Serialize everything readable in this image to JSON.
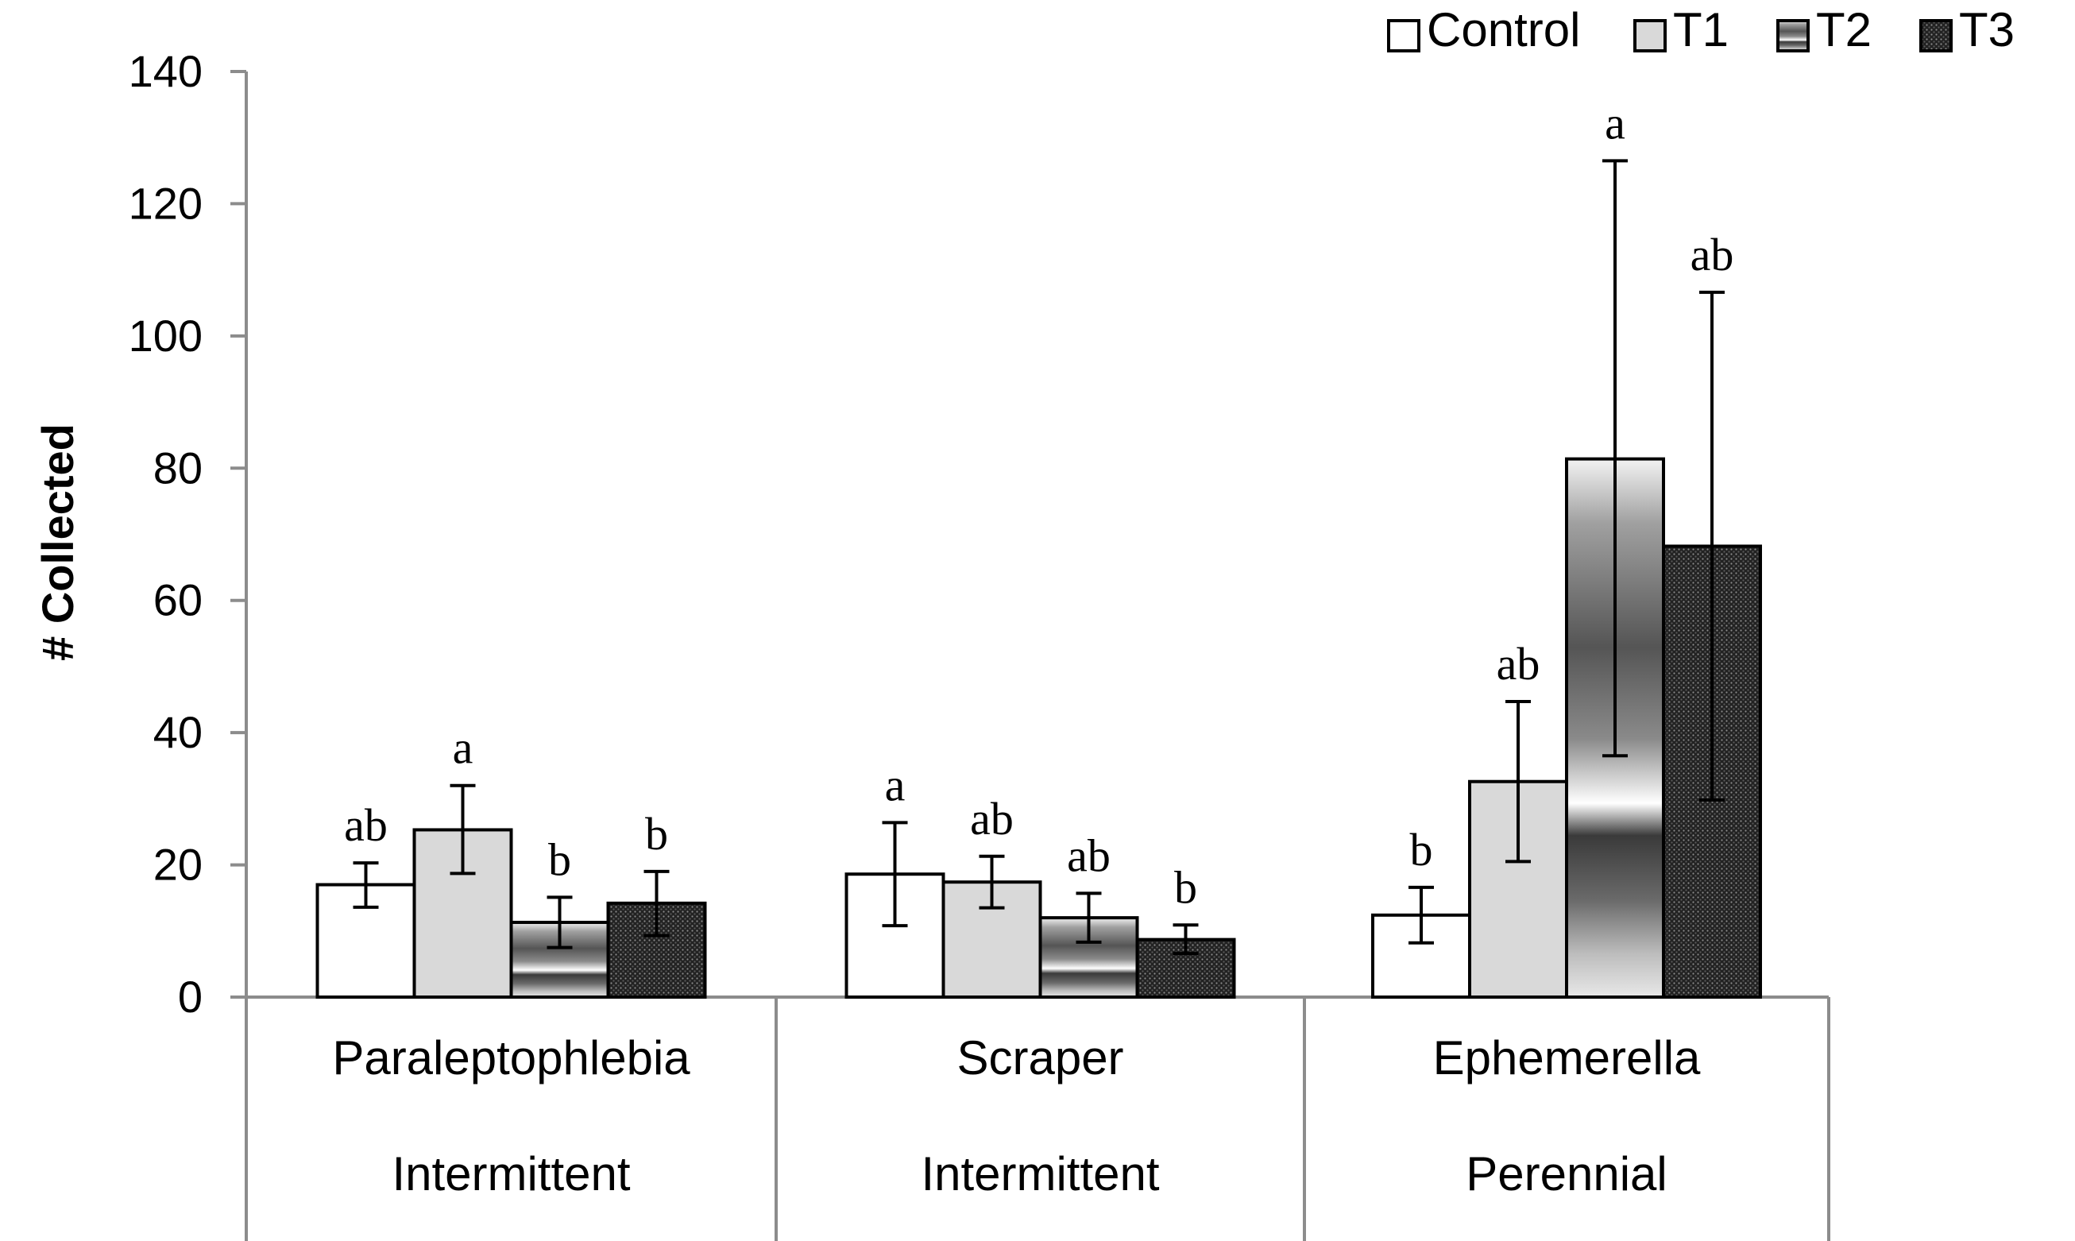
{
  "chart_data": {
    "type": "bar",
    "title": "",
    "xlabel": "",
    "ylabel": "# Collected",
    "ylim": [
      0,
      140
    ],
    "yticks": [
      "0",
      "20",
      "40",
      "60",
      "80",
      "100",
      "120",
      "140"
    ],
    "ytick_values": [
      0,
      20,
      40,
      60,
      80,
      100,
      120,
      140
    ],
    "grid": false,
    "legend_position": "top-right",
    "categories": [
      {
        "name": "Paraleptophlebia",
        "group": "Intermittent"
      },
      {
        "name": "Scraper",
        "group": "Intermittent"
      },
      {
        "name": "Ephemerella",
        "group": "Perennial"
      }
    ],
    "series": [
      {
        "name": "Control",
        "fill": "#ffffff",
        "values": [
          17,
          18.6,
          12.4
        ],
        "err_low": [
          13.6,
          10.8,
          8.2
        ],
        "err_high": [
          20.3,
          26.4,
          16.6
        ],
        "labels": [
          "ab",
          "a",
          "b"
        ]
      },
      {
        "name": "T1",
        "fill": "#d9d9d9",
        "values": [
          25.3,
          17.4,
          32.6
        ],
        "err_low": [
          18.7,
          13.5,
          20.5
        ],
        "err_high": [
          32,
          21.3,
          44.7
        ],
        "labels": [
          "a",
          "ab",
          "ab"
        ]
      },
      {
        "name": "T2",
        "fill": "gradient-metal",
        "values": [
          11.3,
          12,
          81.4
        ],
        "err_low": [
          7.5,
          8.3,
          36.5
        ],
        "err_high": [
          15.1,
          15.7,
          126.5
        ],
        "labels": [
          "b",
          "ab",
          "a"
        ]
      },
      {
        "name": "T3",
        "fill": "pattern-dots",
        "values": [
          14.2,
          8.7,
          68.2
        ],
        "err_low": [
          9.3,
          6.6,
          29.8
        ],
        "err_high": [
          19,
          10.9,
          106.6
        ],
        "labels": [
          "b",
          "b",
          "ab"
        ]
      }
    ]
  },
  "colors": {
    "axis": "#8c8c8c",
    "bar_outline": "#000000",
    "t1_fill": "#d9d9d9",
    "t3_fill": "#262626"
  }
}
